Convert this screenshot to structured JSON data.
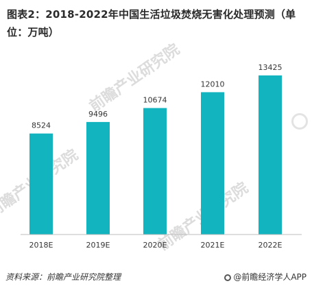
{
  "title": "图表2：2018-2022年中国生活垃圾焚烧无害化处理预测（单位：万吨）",
  "source": "资料来源：前瞻产业研究院整理",
  "brand": "@前瞻经济学人APP",
  "watermark": "前瞻产业研究院",
  "colors": {
    "bar": "#12b5bf",
    "axis": "#bdbdbd"
  },
  "chart_data": {
    "type": "bar",
    "title": "图表2：2018-2022年中国生活垃圾焚烧无害化处理预测（单位：万吨）",
    "categories": [
      "2018E",
      "2019E",
      "2020E",
      "2021E",
      "2022E"
    ],
    "values": [
      8524,
      9496,
      10674,
      12010,
      13425
    ],
    "xlabel": "",
    "ylabel": "",
    "ylim": [
      0,
      14000
    ],
    "grid": false,
    "legend": "none"
  }
}
